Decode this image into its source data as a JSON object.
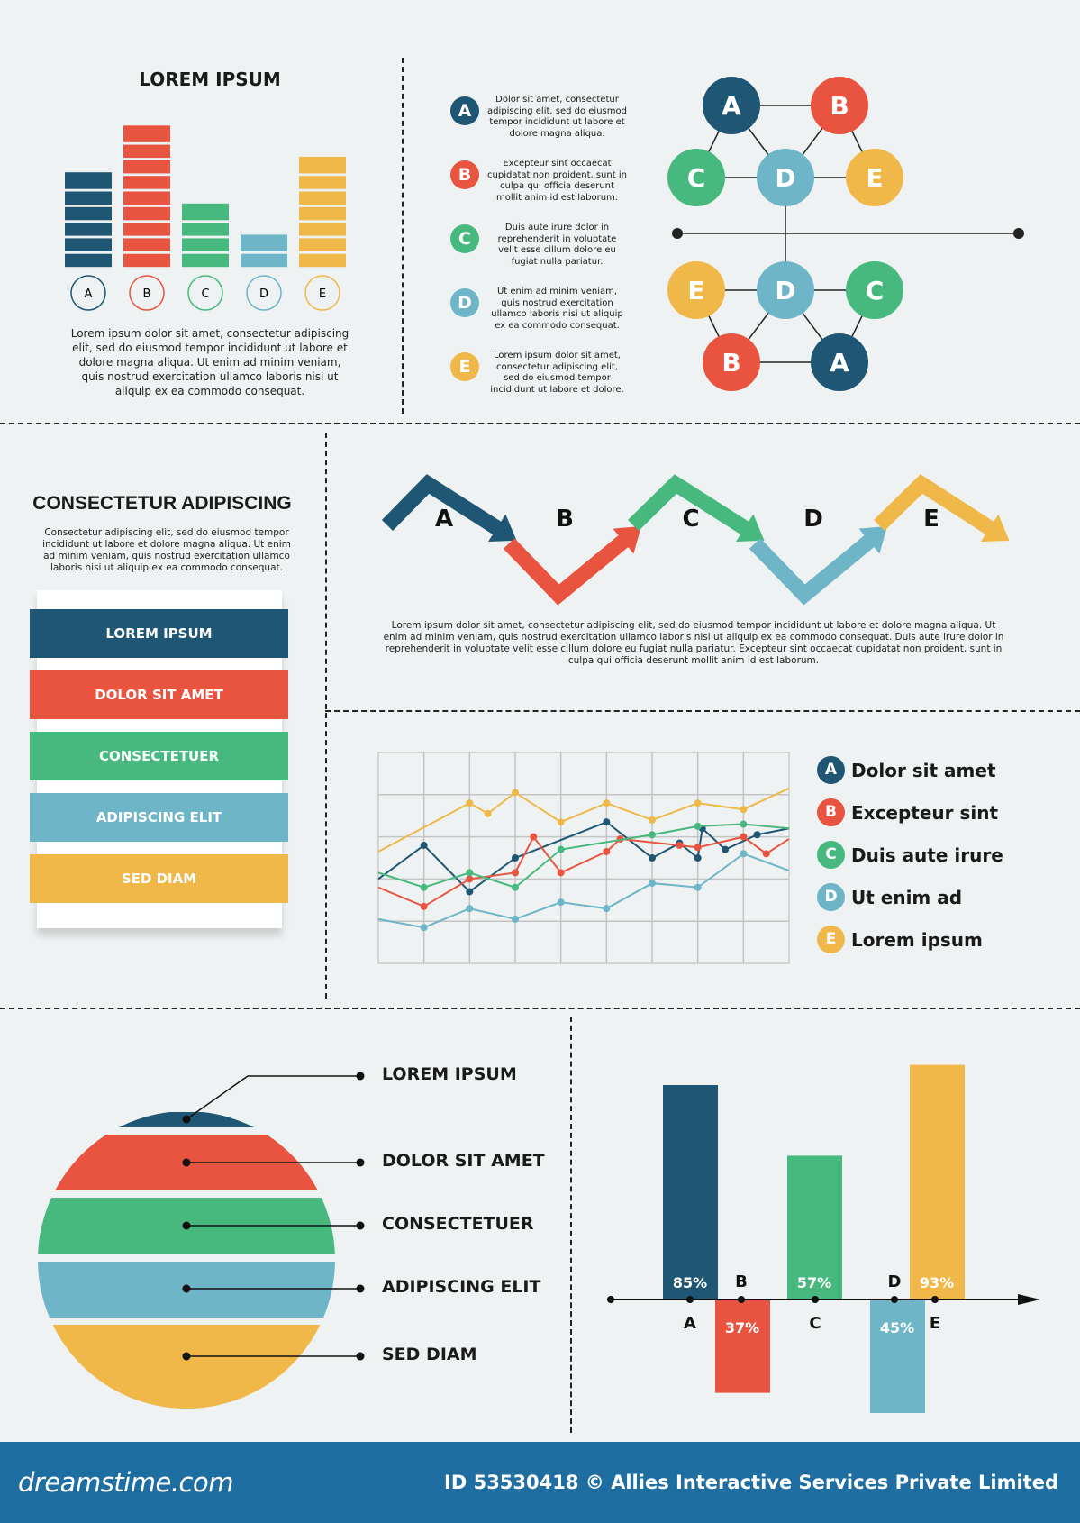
{
  "colors": {
    "a": "#1f5673",
    "b": "#e8543f",
    "c": "#47b97f",
    "d": "#6db5c7",
    "e": "#f0b849"
  },
  "top_left": {
    "title": "LOREM IPSUM",
    "text": "Lorem ipsum dolor sit amet, consectetur adipiscing elit, sed do eiusmod tempor incididunt ut labore et dolore magna aliqua. Ut enim ad minim veniam, quis nostrud exercitation ullamco laboris nisi ut aliquip ex ea commodo consequat."
  },
  "letters": [
    "A",
    "B",
    "C",
    "D",
    "E"
  ],
  "points": [
    "Dolor sit amet, consectetur adipiscing elit, sed do eiusmod tempor incididunt ut labore et dolore magna aliqua.",
    "Excepteur sint occaecat cupidatat non proident, sunt in culpa qui officia deserunt mollit anim id est laborum.",
    "Duis aute irure dolor in reprehenderit in voluptate velit esse cillum dolore eu fugiat nulla pariatur.",
    "Ut enim ad minim veniam, quis nostrud exercitation ullamco laboris nisi ut aliquip ex ea commodo consequat.",
    "Lorem ipsum dolor sit amet, consectetur adipiscing elit, sed do eiusmod tempor incididunt ut labore et dolore."
  ],
  "network": {
    "top": [
      "A",
      "B",
      "C",
      "D",
      "E"
    ],
    "bottom": [
      "E",
      "D",
      "C",
      "B",
      "A"
    ]
  },
  "middle_left": {
    "title": "CONSECTETUR ADIPISCING",
    "text": "Consectetur adipiscing elit, sed do eiusmod tempor incididunt ut labore et dolore magna aliqua. Ut enim ad minim veniam, quis nostrud exercitation ullamco laboris nisi ut aliquip ex ea commodo consequat.",
    "ribbons": [
      "LOREM IPSUM",
      "DOLOR SIT AMET",
      "CONSECTETUER",
      "ADIPISCING ELIT",
      "SED DIAM"
    ]
  },
  "steps": {
    "labels": [
      "A",
      "B",
      "C",
      "D",
      "E"
    ],
    "text": "Lorem ipsum dolor sit amet, consectetur adipiscing elit, sed do eiusmod tempor incididunt ut labore et dolore magna aliqua. Ut enim ad minim veniam, quis nostrud exercitation ullamco laboris nisi ut aliquip ex ea commodo consequat. Duis aute irure dolor in reprehenderit in voluptate velit esse cillum dolore eu fugiat nulla pariatur. Excepteur sint occaecat cupidatat non proident, sunt in culpa qui officia deserunt mollit anim id est laborum."
  },
  "line_legend": [
    "Dolor sit amet",
    "Excepteur sint",
    "Duis aute irure",
    "Ut enim ad",
    "Lorem ipsum"
  ],
  "pie_labels": [
    "LOREM IPSUM",
    "DOLOR SIT AMET",
    "CONSECTETUER",
    "ADIPISCING ELIT",
    "SED DIAM"
  ],
  "footer": {
    "logo": "dreamstime.com",
    "credit": "ID 53530418 © Allies Interactive Services Private Limited"
  },
  "chart_data": [
    {
      "type": "bar",
      "categories": [
        "A",
        "B",
        "C",
        "D",
        "E"
      ],
      "values": [
        6,
        9,
        4,
        2,
        7
      ],
      "grid": false
    },
    {
      "type": "line",
      "grid": true,
      "xlim": [
        0,
        9
      ],
      "ylim": [
        0,
        5
      ],
      "series": [
        {
          "name": "Dolor sit amet",
          "color": "#1f5673",
          "x": [
            0,
            1,
            2,
            3,
            5,
            6,
            6.6,
            7,
            7.1,
            7.6,
            8.3,
            9
          ],
          "y": [
            2,
            2.8,
            1.7,
            2.5,
            3.35,
            2.5,
            2.85,
            2.5,
            3.2,
            2.7,
            3.05,
            3.2
          ]
        },
        {
          "name": "Excepteur sint",
          "color": "#e8543f",
          "x": [
            0,
            1,
            2,
            3,
            3.4,
            4,
            5,
            5.3,
            6.6,
            7,
            8,
            8.5,
            9
          ],
          "y": [
            1.8,
            1.35,
            2,
            2.15,
            3.0,
            2.15,
            2.65,
            2.95,
            2.8,
            2.75,
            3.0,
            2.6,
            2.95
          ]
        },
        {
          "name": "Duis aute irure",
          "color": "#47b97f",
          "x": [
            0,
            1,
            2,
            3,
            4,
            6,
            7,
            8,
            9
          ],
          "y": [
            2.15,
            1.8,
            2.15,
            1.8,
            2.7,
            3.05,
            3.25,
            3.3,
            3.2
          ]
        },
        {
          "name": "Ut enim ad",
          "color": "#6db5c7",
          "x": [
            0,
            1,
            2,
            3,
            4,
            5,
            6,
            7,
            8,
            9
          ],
          "y": [
            1.05,
            0.85,
            1.3,
            1.05,
            1.45,
            1.3,
            1.9,
            1.8,
            2.6,
            2.2
          ]
        },
        {
          "name": "Lorem ipsum",
          "color": "#f0b849",
          "x": [
            0,
            2,
            2.4,
            3,
            4,
            5,
            6,
            7,
            8,
            9
          ],
          "y": [
            2.65,
            3.8,
            3.55,
            4.05,
            3.35,
            3.8,
            3.4,
            3.8,
            3.65,
            4.15
          ]
        }
      ]
    },
    {
      "type": "bar",
      "categories": [
        "A",
        "B",
        "C",
        "D",
        "E"
      ],
      "values": [
        85,
        -37,
        57,
        -45,
        93
      ],
      "data_labels": [
        "85%",
        "37%",
        "57%",
        "45%",
        "93%"
      ]
    }
  ]
}
